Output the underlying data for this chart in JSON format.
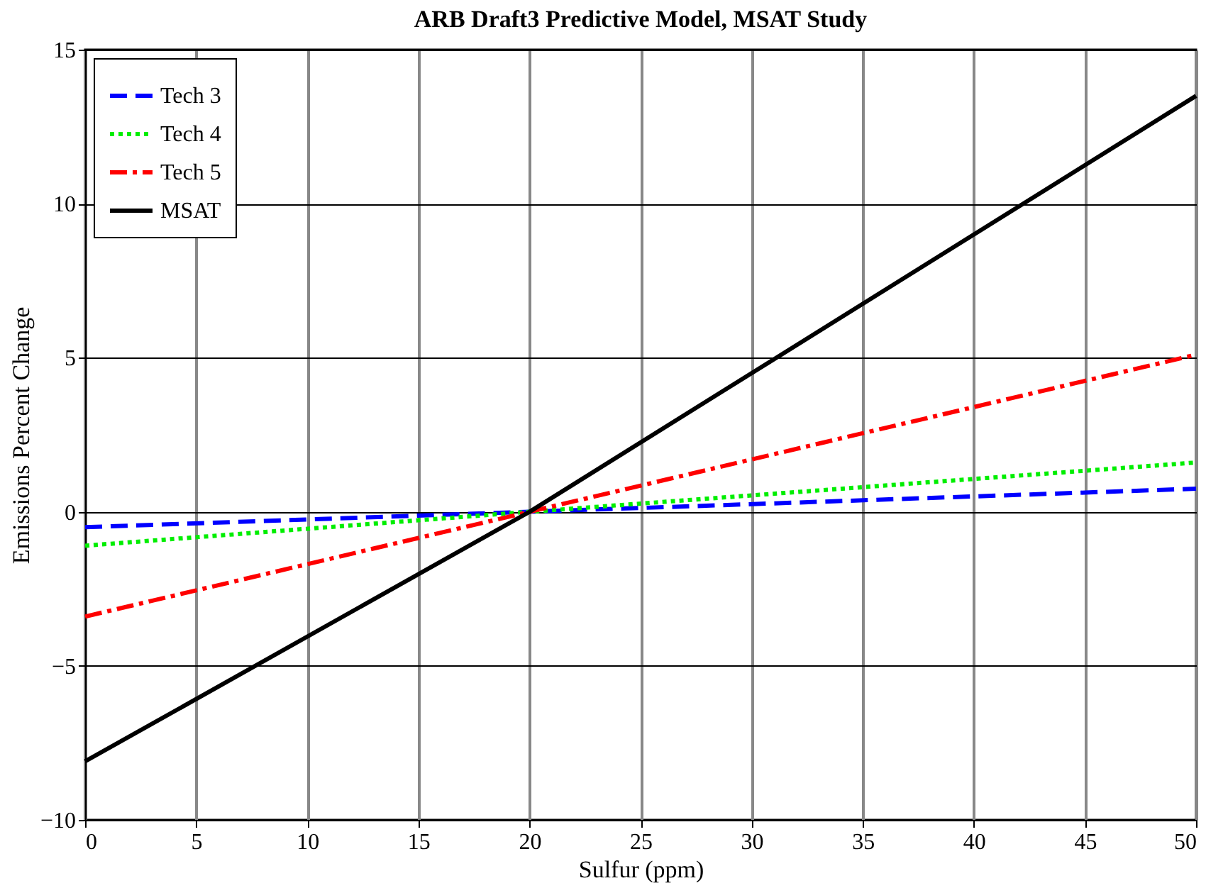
{
  "chart_data": {
    "type": "line",
    "title": "ARB Draft3 Predictive Model, MSAT Study",
    "xlabel": "Sulfur (ppm)",
    "ylabel": "Emissions Percent Change",
    "x": [
      0,
      20,
      50
    ],
    "series": [
      {
        "name": "Tech 3",
        "color": "#0000ff",
        "line_style": "dashed",
        "values": [
          -0.5,
          0,
          0.75
        ]
      },
      {
        "name": "Tech 4",
        "color": "#00ee00",
        "line_style": "dotted",
        "values": [
          -1.1,
          0,
          1.6
        ]
      },
      {
        "name": "Tech 5",
        "color": "#ff0000",
        "line_style": "dashdot",
        "values": [
          -3.4,
          0,
          5.1
        ]
      },
      {
        "name": "MSAT",
        "color": "#000000",
        "line_style": "solid",
        "values": [
          -8.1,
          0,
          13.5
        ]
      }
    ],
    "xlim": [
      0,
      50
    ],
    "xticks": [
      0,
      5,
      10,
      15,
      20,
      25,
      30,
      35,
      40,
      45,
      50
    ],
    "ylim": [
      -10,
      15
    ],
    "yticks": [
      -10,
      -5,
      0,
      5,
      10,
      15
    ],
    "grid": true,
    "legend": "top left",
    "marker": "none"
  }
}
